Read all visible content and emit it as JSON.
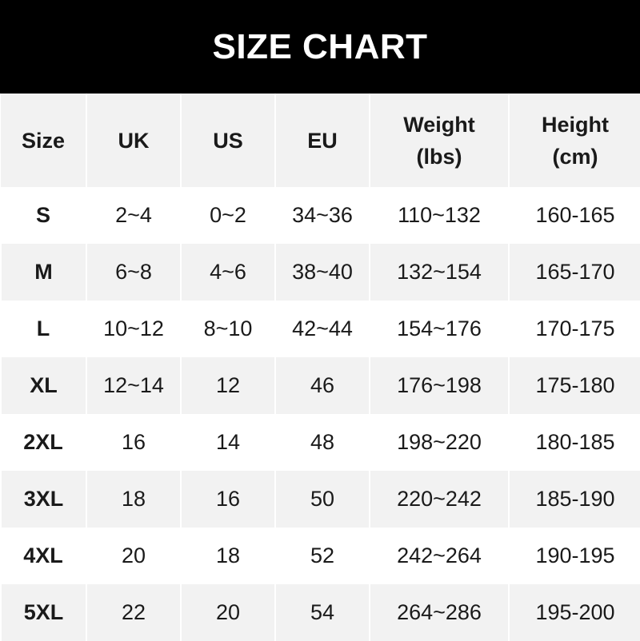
{
  "title": "SIZE CHART",
  "columns": [
    "Size",
    "UK",
    "US",
    "EU",
    "Weight\n(lbs)",
    "Height\n(cm)"
  ],
  "rows": [
    [
      "S",
      "2~4",
      "0~2",
      "34~36",
      "110~132",
      "160-165"
    ],
    [
      "M",
      "6~8",
      "4~6",
      "38~40",
      "132~154",
      "165-170"
    ],
    [
      "L",
      "10~12",
      "8~10",
      "42~44",
      "154~176",
      "170-175"
    ],
    [
      "XL",
      "12~14",
      "12",
      "46",
      "176~198",
      "175-180"
    ],
    [
      "2XL",
      "16",
      "14",
      "48",
      "198~220",
      "180-185"
    ],
    [
      "3XL",
      "18",
      "16",
      "50",
      "220~242",
      "185-190"
    ],
    [
      "4XL",
      "20",
      "18",
      "52",
      "242~264",
      "190-195"
    ],
    [
      "5XL",
      "22",
      "20",
      "54",
      "264~286",
      "195-200"
    ]
  ],
  "colors": {
    "banner": "#000000",
    "stripe": "#f2f2f2"
  }
}
